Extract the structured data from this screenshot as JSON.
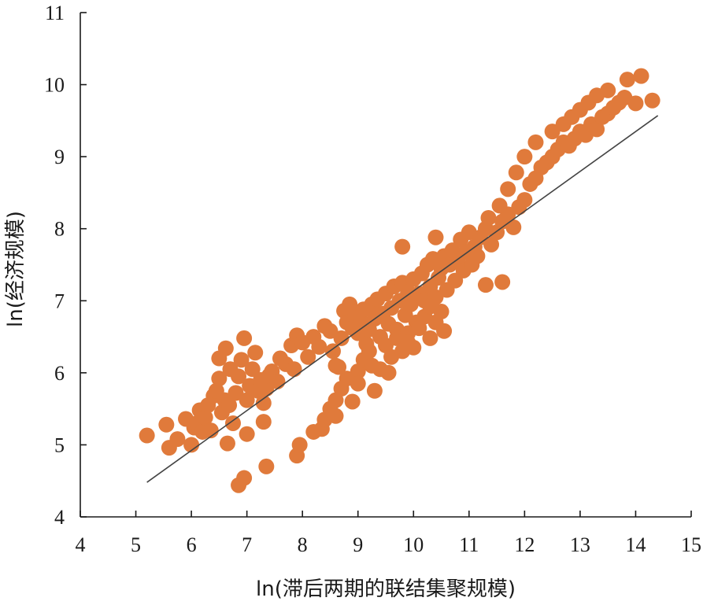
{
  "chart_data": {
    "type": "scatter",
    "title": "",
    "xlabel": "ln(滞后两期的联结集聚规模)",
    "ylabel": "ln(经济规模)",
    "xlim": [
      4,
      15
    ],
    "ylim": [
      4,
      11
    ],
    "xticks": [
      "4",
      "5",
      "6",
      "7",
      "8",
      "9",
      "10",
      "11",
      "12",
      "13",
      "14",
      "15"
    ],
    "yticks": [
      "4",
      "5",
      "6",
      "7",
      "8",
      "9",
      "10",
      "11"
    ],
    "grid": false,
    "legend": "none",
    "point_color": "#e07a3b",
    "trendline": {
      "x": [
        5.2,
        14.4
      ],
      "y": [
        4.48,
        9.57
      ],
      "color": "#444444"
    },
    "points": [
      [
        5.2,
        5.13
      ],
      [
        5.55,
        5.28
      ],
      [
        5.6,
        4.96
      ],
      [
        5.75,
        5.08
      ],
      [
        5.9,
        5.36
      ],
      [
        6.0,
        5.0
      ],
      [
        6.05,
        5.24
      ],
      [
        6.1,
        5.3
      ],
      [
        6.15,
        5.48
      ],
      [
        6.2,
        5.18
      ],
      [
        6.25,
        5.38
      ],
      [
        6.3,
        5.55
      ],
      [
        6.35,
        5.2
      ],
      [
        6.4,
        5.68
      ],
      [
        6.45,
        5.75
      ],
      [
        6.5,
        5.92
      ],
      [
        6.5,
        6.2
      ],
      [
        6.55,
        5.45
      ],
      [
        6.6,
        5.62
      ],
      [
        6.62,
        6.34
      ],
      [
        6.65,
        5.02
      ],
      [
        6.68,
        5.55
      ],
      [
        6.7,
        6.05
      ],
      [
        6.75,
        5.3
      ],
      [
        6.8,
        5.72
      ],
      [
        6.85,
        5.95
      ],
      [
        6.9,
        6.18
      ],
      [
        6.95,
        6.48
      ],
      [
        7.0,
        5.62
      ],
      [
        7.0,
        5.15
      ],
      [
        7.05,
        5.82
      ],
      [
        7.1,
        6.05
      ],
      [
        7.15,
        6.28
      ],
      [
        7.2,
        5.75
      ],
      [
        7.25,
        5.9
      ],
      [
        7.3,
        5.58
      ],
      [
        7.3,
        5.32
      ],
      [
        7.35,
        5.78
      ],
      [
        7.4,
        5.96
      ],
      [
        7.45,
        6.02
      ],
      [
        7.55,
        5.88
      ],
      [
        7.6,
        6.2
      ],
      [
        7.7,
        6.12
      ],
      [
        7.8,
        6.38
      ],
      [
        7.85,
        6.05
      ],
      [
        7.9,
        6.52
      ],
      [
        8.0,
        6.42
      ],
      [
        8.1,
        6.22
      ],
      [
        8.2,
        6.5
      ],
      [
        8.3,
        6.36
      ],
      [
        8.4,
        6.65
      ],
      [
        8.5,
        6.58
      ],
      [
        8.55,
        6.3
      ],
      [
        8.6,
        6.1
      ],
      [
        8.7,
        6.48
      ],
      [
        8.75,
        6.86
      ],
      [
        8.8,
        6.7
      ],
      [
        8.85,
        6.95
      ],
      [
        8.9,
        6.62
      ],
      [
        8.95,
        6.8
      ],
      [
        9.0,
        6.55
      ],
      [
        9.05,
        6.72
      ],
      [
        9.1,
        6.88
      ],
      [
        9.15,
        6.4
      ],
      [
        9.2,
        6.6
      ],
      [
        9.25,
        6.95
      ],
      [
        9.3,
        6.75
      ],
      [
        9.35,
        7.02
      ],
      [
        9.4,
        6.5
      ],
      [
        9.45,
        6.82
      ],
      [
        9.5,
        7.1
      ],
      [
        9.55,
        6.68
      ],
      [
        9.6,
        6.9
      ],
      [
        9.65,
        7.2
      ],
      [
        9.7,
        6.6
      ],
      [
        9.75,
        7.0
      ],
      [
        9.8,
        7.25
      ],
      [
        9.85,
        6.8
      ],
      [
        9.9,
        7.12
      ],
      [
        9.95,
        6.95
      ],
      [
        10.0,
        7.3
      ],
      [
        10.05,
        6.7
      ],
      [
        10.1,
        7.1
      ],
      [
        10.15,
        7.38
      ],
      [
        10.2,
        7.0
      ],
      [
        10.25,
        7.5
      ],
      [
        10.3,
        7.2
      ],
      [
        10.35,
        7.58
      ],
      [
        10.4,
        7.05
      ],
      [
        10.45,
        7.32
      ],
      [
        10.5,
        7.45
      ],
      [
        10.55,
        7.62
      ],
      [
        10.6,
        7.15
      ],
      [
        10.65,
        7.5
      ],
      [
        10.7,
        7.7
      ],
      [
        10.75,
        7.28
      ],
      [
        10.8,
        7.55
      ],
      [
        10.85,
        7.85
      ],
      [
        10.9,
        7.42
      ],
      [
        10.95,
        7.68
      ],
      [
        11.0,
        7.95
      ],
      [
        11.05,
        7.5
      ],
      [
        11.1,
        7.75
      ],
      [
        11.15,
        7.62
      ],
      [
        11.2,
        7.88
      ],
      [
        11.3,
        8.0
      ],
      [
        11.4,
        7.78
      ],
      [
        11.5,
        7.95
      ],
      [
        11.6,
        8.1
      ],
      [
        11.7,
        8.2
      ],
      [
        11.8,
        8.02
      ],
      [
        11.9,
        8.3
      ],
      [
        12.0,
        8.4
      ],
      [
        12.1,
        8.62
      ],
      [
        12.2,
        8.7
      ],
      [
        12.3,
        8.85
      ],
      [
        12.4,
        8.92
      ],
      [
        12.5,
        9.0
      ],
      [
        12.6,
        9.1
      ],
      [
        12.7,
        9.2
      ],
      [
        12.8,
        9.15
      ],
      [
        12.9,
        9.25
      ],
      [
        13.0,
        9.35
      ],
      [
        13.1,
        9.3
      ],
      [
        13.2,
        9.45
      ],
      [
        13.3,
        9.38
      ],
      [
        13.4,
        9.55
      ],
      [
        13.5,
        9.6
      ],
      [
        13.6,
        9.68
      ],
      [
        13.7,
        9.75
      ],
      [
        13.8,
        9.82
      ],
      [
        14.0,
        9.74
      ],
      [
        14.3,
        9.78
      ],
      [
        9.8,
        7.75
      ],
      [
        10.4,
        7.88
      ],
      [
        11.3,
        7.22
      ],
      [
        11.6,
        7.26
      ],
      [
        11.35,
        8.15
      ],
      [
        11.55,
        8.32
      ],
      [
        11.7,
        8.55
      ],
      [
        11.85,
        8.78
      ],
      [
        12.0,
        9.0
      ],
      [
        12.2,
        9.2
      ],
      [
        12.5,
        9.35
      ],
      [
        12.7,
        9.45
      ],
      [
        12.85,
        9.55
      ],
      [
        13.0,
        9.65
      ],
      [
        13.15,
        9.75
      ],
      [
        13.3,
        9.85
      ],
      [
        13.5,
        9.92
      ],
      [
        13.85,
        10.07
      ],
      [
        14.1,
        10.12
      ],
      [
        6.85,
        4.44
      ],
      [
        6.95,
        4.54
      ],
      [
        7.35,
        4.7
      ],
      [
        7.9,
        4.85
      ],
      [
        7.95,
        5.0
      ],
      [
        8.2,
        5.18
      ],
      [
        8.35,
        5.22
      ],
      [
        8.4,
        5.35
      ],
      [
        8.5,
        5.5
      ],
      [
        8.6,
        5.62
      ],
      [
        8.7,
        5.78
      ],
      [
        8.8,
        5.92
      ],
      [
        8.9,
        5.6
      ],
      [
        9.0,
        6.02
      ],
      [
        9.1,
        6.18
      ],
      [
        9.2,
        6.3
      ],
      [
        9.3,
        5.75
      ],
      [
        9.4,
        6.05
      ],
      [
        9.5,
        6.38
      ],
      [
        9.6,
        6.22
      ],
      [
        9.7,
        6.48
      ],
      [
        9.8,
        6.3
      ],
      [
        9.9,
        6.55
      ],
      [
        10.0,
        6.35
      ],
      [
        10.1,
        6.62
      ],
      [
        10.2,
        6.78
      ],
      [
        10.3,
        6.48
      ],
      [
        10.4,
        6.7
      ],
      [
        10.5,
        6.85
      ],
      [
        10.55,
        6.58
      ],
      [
        8.6,
        5.4
      ],
      [
        8.65,
        6.08
      ],
      [
        9.0,
        5.85
      ],
      [
        9.25,
        6.1
      ],
      [
        9.55,
        6.0
      ],
      [
        9.9,
        6.42
      ],
      [
        10.3,
        6.92
      ]
    ]
  }
}
